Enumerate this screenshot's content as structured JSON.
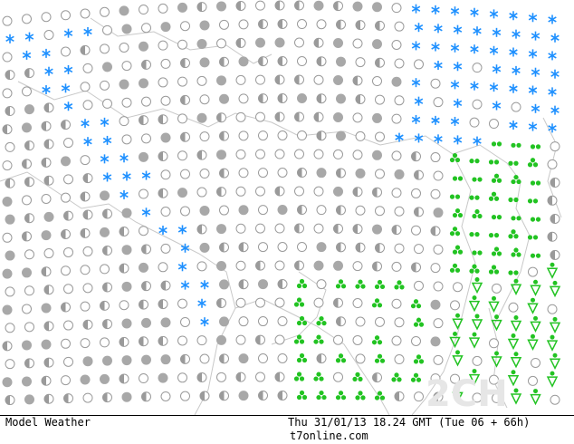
{
  "footer": {
    "left": "Model Weather",
    "datetime": "Thu 31/01/13 18.24 GMT (Tue 06 + 66h)",
    "site": "t7online.com"
  },
  "watermark": "2CH"
}
